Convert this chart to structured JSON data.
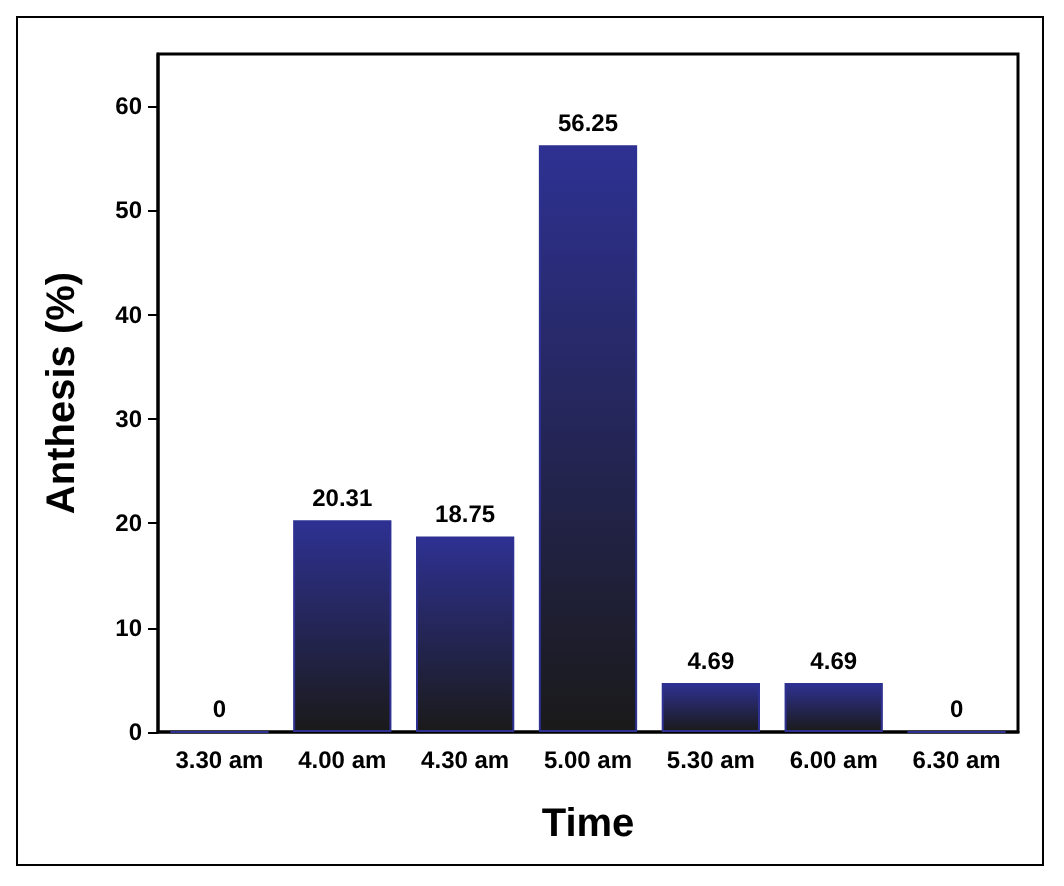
{
  "chart_data": {
    "type": "bar",
    "xlabel": "Time",
    "ylabel": "Anthesis (%)",
    "categories": [
      "3.30 am",
      "4.00 am",
      "4.30 am",
      "5.00 am",
      "5.30 am",
      "6.00 am",
      "6.30 am"
    ],
    "values": [
      0,
      20.31,
      18.75,
      56.25,
      4.69,
      4.69,
      0
    ],
    "color": "#2e3192",
    "ylim": [
      0,
      65
    ],
    "yticks": [
      0,
      10,
      20,
      30,
      40,
      50,
      60
    ],
    "data_labels": true,
    "grid": false
  }
}
